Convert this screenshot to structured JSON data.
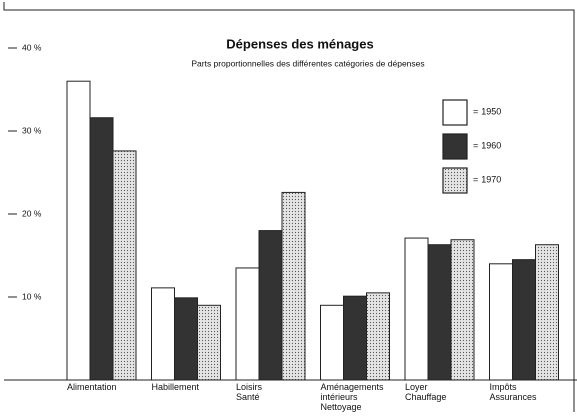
{
  "chart_data": {
    "type": "bar",
    "title": "Dépenses des ménages",
    "subtitle": "Parts proportionnelles des différentes catégories de dépenses",
    "categories": [
      [
        "Alimentation"
      ],
      [
        "Habillement"
      ],
      [
        "Loisirs",
        "Santé"
      ],
      [
        "Aménagements",
        "intérieurs",
        "Nettoyage"
      ],
      [
        "Loyer",
        "Chauffage"
      ],
      [
        "Impôts",
        "Assurances"
      ]
    ],
    "series": [
      {
        "name": "1950",
        "color": "#ffffff",
        "values": [
          36.0,
          11.1,
          13.5,
          9.0,
          17.1,
          14.0
        ]
      },
      {
        "name": "1960",
        "color": "#333333",
        "values": [
          31.6,
          9.9,
          18.0,
          10.1,
          16.3,
          14.5
        ]
      },
      {
        "name": "1970",
        "color": "#e4e4e4",
        "fill_pattern": "dots",
        "values": [
          27.6,
          9.0,
          22.6,
          10.5,
          16.9,
          16.3
        ]
      }
    ],
    "legend_separator": "=",
    "ylim": [
      0,
      42
    ],
    "yticks": [
      {
        "value": 10,
        "label": "10 %"
      },
      {
        "value": 20,
        "label": "20 %"
      },
      {
        "value": 30,
        "label": "30 %"
      },
      {
        "value": 40,
        "label": "40 %"
      }
    ],
    "grid": false
  }
}
